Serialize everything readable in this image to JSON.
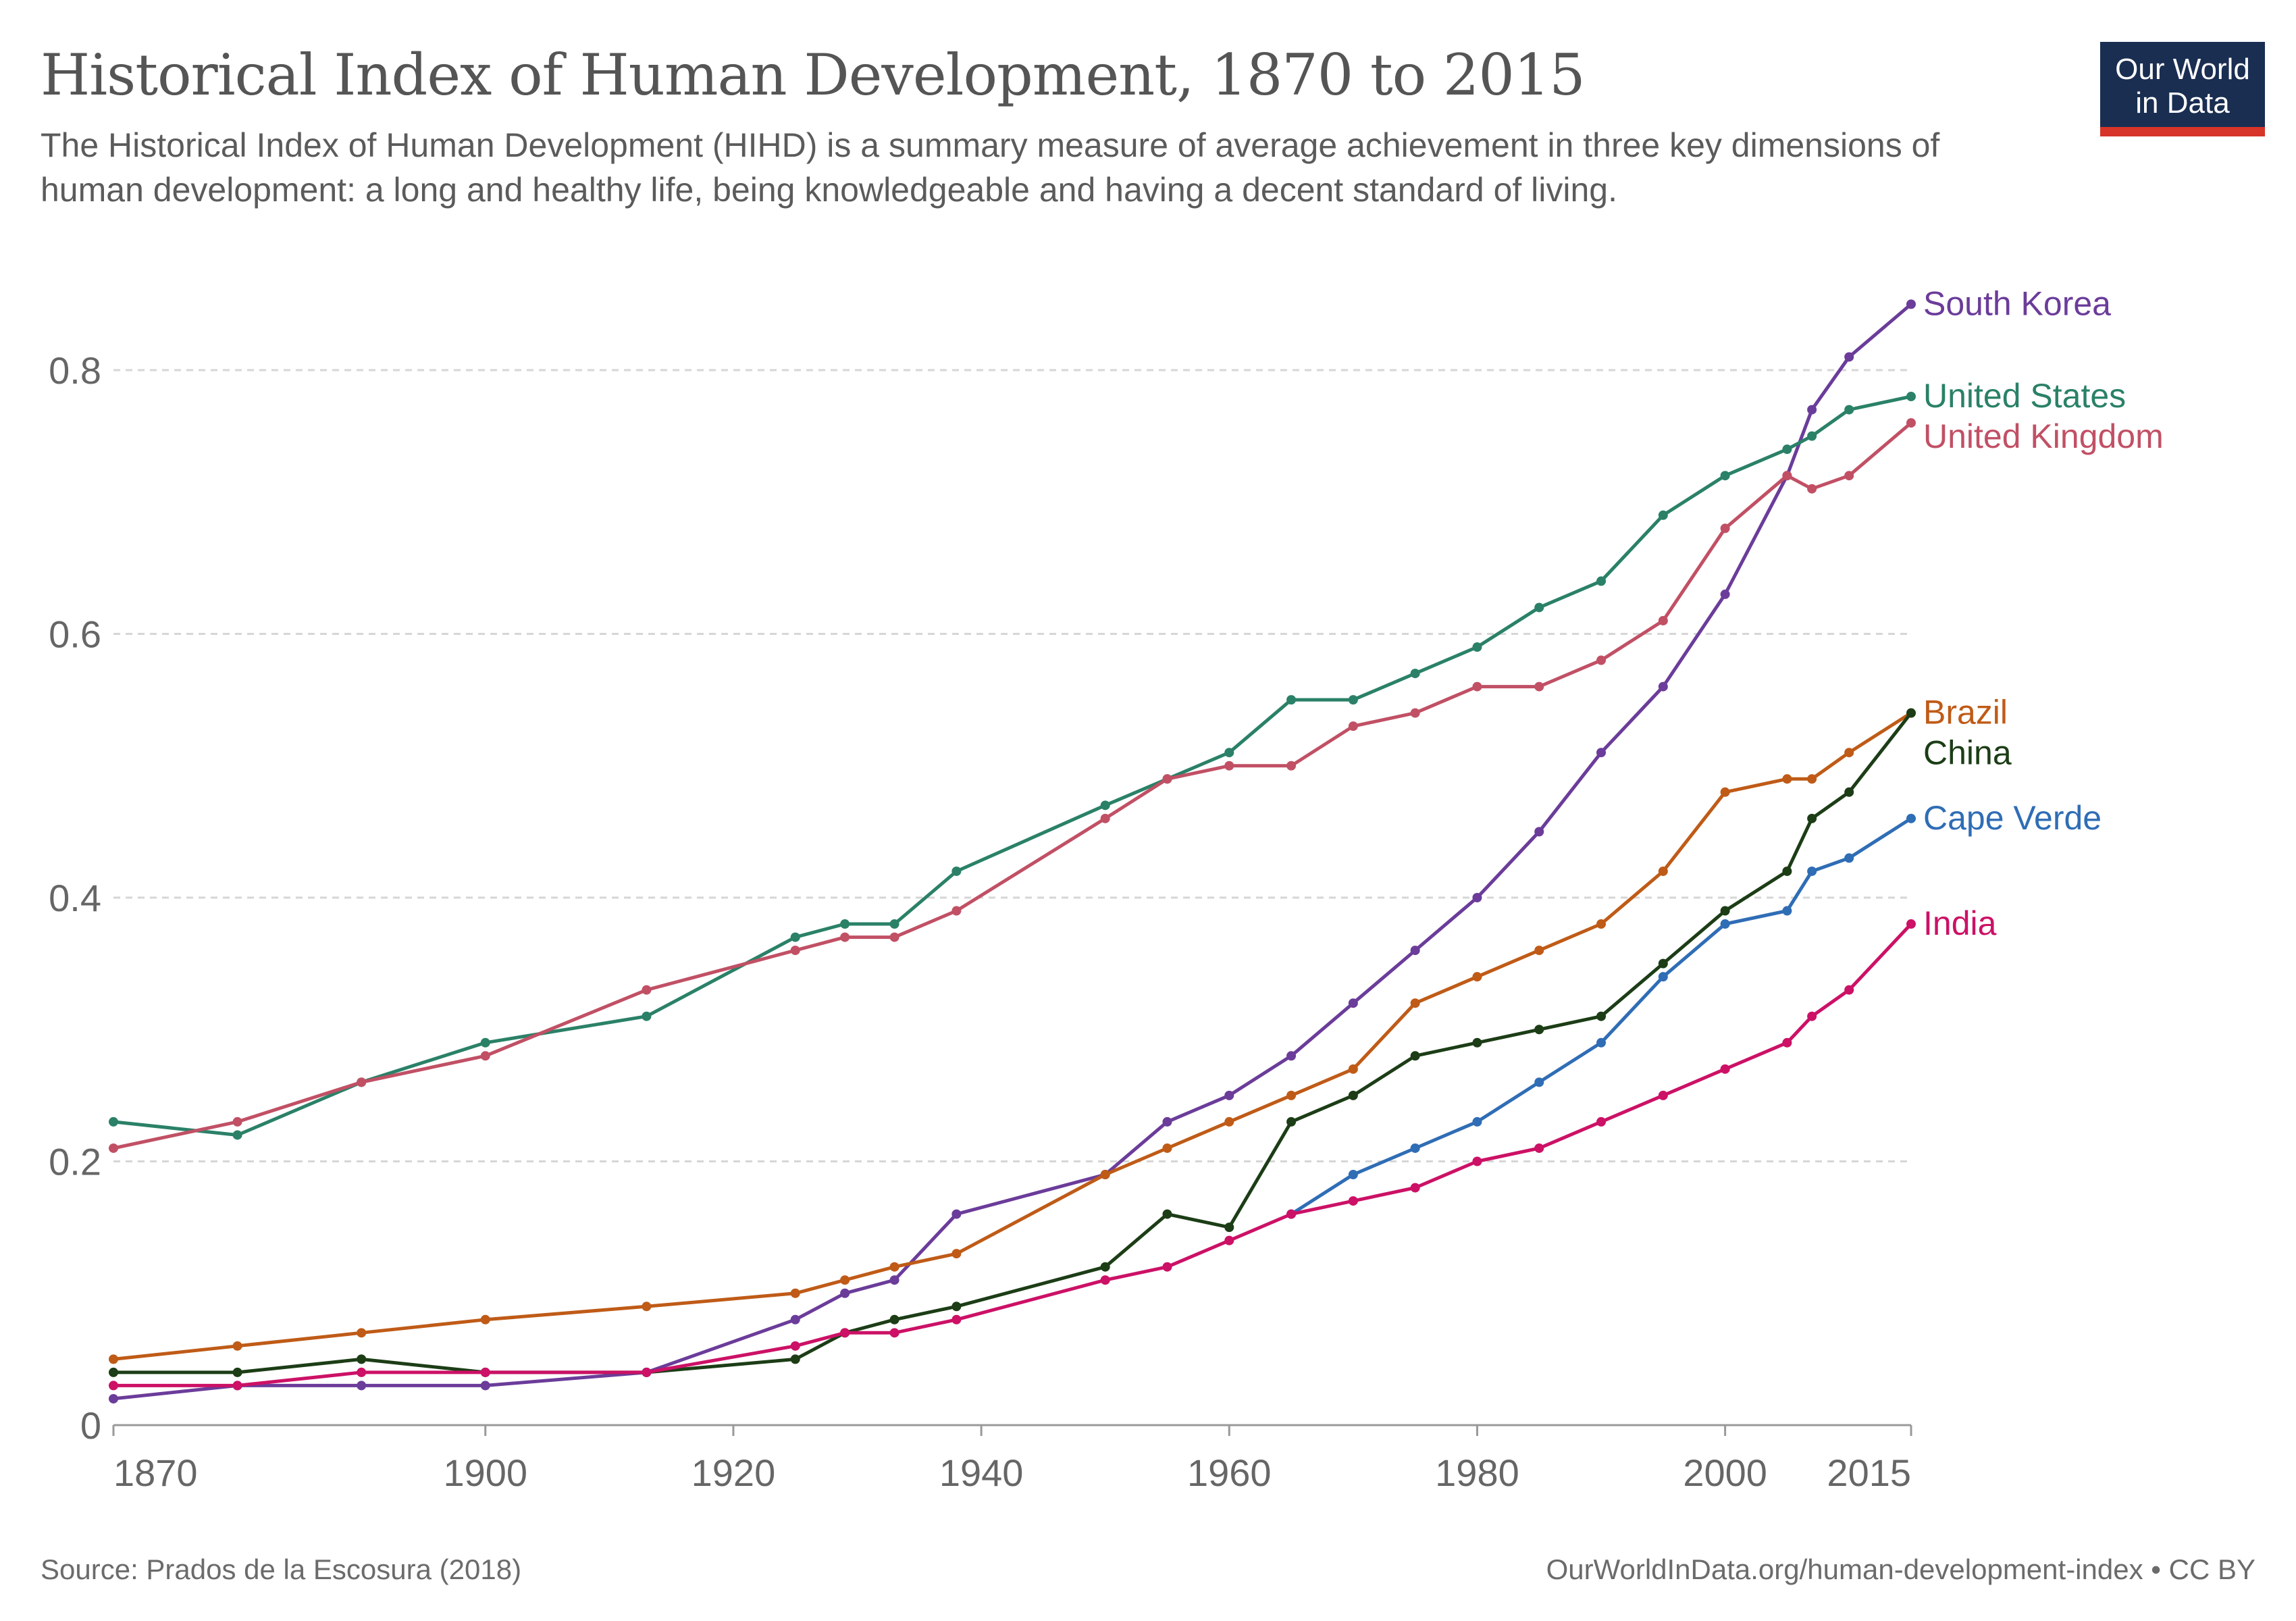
{
  "header": {
    "title": "Historical Index of Human Development, 1870 to 2015",
    "subtitle": "The Historical Index of Human Development (HIHD) is a summary measure of average achievement in three key dimensions of human development: a long and healthy life, being knowledgeable and having a decent standard of living."
  },
  "logo": {
    "line1": "Our World",
    "line2": "in Data",
    "bg_color": "#1a2e52",
    "accent_color": "#d73529"
  },
  "footer": {
    "source": "Source: Prados de la Escosura (2018)",
    "link": "OurWorldInData.org/human-development-index • CC BY"
  },
  "chart_data": {
    "type": "line",
    "title": "Historical Index of Human Development, 1870 to 2015",
    "xlabel": "",
    "ylabel": "",
    "xlim": [
      1870,
      2015
    ],
    "ylim": [
      0,
      0.85
    ],
    "x_ticks": [
      1870,
      1900,
      1920,
      1940,
      1960,
      1980,
      2000,
      2015
    ],
    "y_ticks": [
      0,
      0.2,
      0.4,
      0.6,
      0.8
    ],
    "y_tick_labels": [
      "0",
      "0.2",
      "0.4",
      "0.6",
      "0.8"
    ],
    "grid": "horizontal dashed",
    "legend": "line-end labels",
    "series": [
      {
        "name": "South Korea",
        "color": "#6b3c9a",
        "points": [
          [
            1870,
            0.02
          ],
          [
            1880,
            0.03
          ],
          [
            1890,
            0.03
          ],
          [
            1900,
            0.03
          ],
          [
            1913,
            0.04
          ],
          [
            1925,
            0.08
          ],
          [
            1929,
            0.1
          ],
          [
            1933,
            0.11
          ],
          [
            1938,
            0.16
          ],
          [
            1950,
            0.19
          ],
          [
            1955,
            0.23
          ],
          [
            1960,
            0.25
          ],
          [
            1965,
            0.28
          ],
          [
            1970,
            0.32
          ],
          [
            1975,
            0.36
          ],
          [
            1980,
            0.4
          ],
          [
            1985,
            0.45
          ],
          [
            1990,
            0.51
          ],
          [
            1995,
            0.56
          ],
          [
            2000,
            0.63
          ],
          [
            2005,
            0.72
          ],
          [
            2007,
            0.77
          ],
          [
            2010,
            0.81
          ],
          [
            2015,
            0.85
          ]
        ]
      },
      {
        "name": "United States",
        "color": "#2a8167",
        "points": [
          [
            1870,
            0.23
          ],
          [
            1880,
            0.22
          ],
          [
            1890,
            0.26
          ],
          [
            1900,
            0.29
          ],
          [
            1913,
            0.31
          ],
          [
            1925,
            0.37
          ],
          [
            1929,
            0.38
          ],
          [
            1933,
            0.38
          ],
          [
            1938,
            0.42
          ],
          [
            1950,
            0.47
          ],
          [
            1955,
            0.49
          ],
          [
            1960,
            0.51
          ],
          [
            1965,
            0.55
          ],
          [
            1970,
            0.55
          ],
          [
            1975,
            0.57
          ],
          [
            1980,
            0.59
          ],
          [
            1985,
            0.62
          ],
          [
            1990,
            0.64
          ],
          [
            1995,
            0.69
          ],
          [
            2000,
            0.72
          ],
          [
            2005,
            0.74
          ],
          [
            2007,
            0.75
          ],
          [
            2010,
            0.77
          ],
          [
            2015,
            0.78
          ]
        ]
      },
      {
        "name": "United Kingdom",
        "color": "#c15065",
        "points": [
          [
            1870,
            0.21
          ],
          [
            1880,
            0.23
          ],
          [
            1890,
            0.26
          ],
          [
            1900,
            0.28
          ],
          [
            1913,
            0.33
          ],
          [
            1925,
            0.36
          ],
          [
            1929,
            0.37
          ],
          [
            1933,
            0.37
          ],
          [
            1938,
            0.39
          ],
          [
            1950,
            0.46
          ],
          [
            1955,
            0.49
          ],
          [
            1960,
            0.5
          ],
          [
            1965,
            0.5
          ],
          [
            1970,
            0.53
          ],
          [
            1975,
            0.54
          ],
          [
            1980,
            0.56
          ],
          [
            1985,
            0.56
          ],
          [
            1990,
            0.58
          ],
          [
            1995,
            0.61
          ],
          [
            2000,
            0.68
          ],
          [
            2005,
            0.72
          ],
          [
            2007,
            0.71
          ],
          [
            2010,
            0.72
          ],
          [
            2015,
            0.76
          ]
        ]
      },
      {
        "name": "Brazil",
        "color": "#bf5b17",
        "points": [
          [
            1870,
            0.05
          ],
          [
            1880,
            0.06
          ],
          [
            1890,
            0.07
          ],
          [
            1900,
            0.08
          ],
          [
            1913,
            0.09
          ],
          [
            1925,
            0.1
          ],
          [
            1929,
            0.11
          ],
          [
            1933,
            0.12
          ],
          [
            1938,
            0.13
          ],
          [
            1950,
            0.19
          ],
          [
            1955,
            0.21
          ],
          [
            1960,
            0.23
          ],
          [
            1965,
            0.25
          ],
          [
            1970,
            0.27
          ],
          [
            1975,
            0.32
          ],
          [
            1980,
            0.34
          ],
          [
            1985,
            0.36
          ],
          [
            1990,
            0.38
          ],
          [
            1995,
            0.42
          ],
          [
            2000,
            0.48
          ],
          [
            2005,
            0.49
          ],
          [
            2007,
            0.49
          ],
          [
            2010,
            0.51
          ],
          [
            2015,
            0.54
          ]
        ]
      },
      {
        "name": "China",
        "color": "#1c3d16",
        "points": [
          [
            1870,
            0.04
          ],
          [
            1880,
            0.04
          ],
          [
            1890,
            0.05
          ],
          [
            1900,
            0.04
          ],
          [
            1913,
            0.04
          ],
          [
            1925,
            0.05
          ],
          [
            1929,
            0.07
          ],
          [
            1933,
            0.08
          ],
          [
            1938,
            0.09
          ],
          [
            1950,
            0.12
          ],
          [
            1955,
            0.16
          ],
          [
            1960,
            0.15
          ],
          [
            1965,
            0.23
          ],
          [
            1970,
            0.25
          ],
          [
            1975,
            0.28
          ],
          [
            1980,
            0.29
          ],
          [
            1985,
            0.3
          ],
          [
            1990,
            0.31
          ],
          [
            1995,
            0.35
          ],
          [
            2000,
            0.39
          ],
          [
            2005,
            0.42
          ],
          [
            2007,
            0.46
          ],
          [
            2010,
            0.48
          ],
          [
            2015,
            0.54
          ]
        ]
      },
      {
        "name": "Cape Verde",
        "color": "#2f6db5",
        "points": [
          [
            1965,
            0.16
          ],
          [
            1970,
            0.19
          ],
          [
            1975,
            0.21
          ],
          [
            1980,
            0.23
          ],
          [
            1985,
            0.26
          ],
          [
            1990,
            0.29
          ],
          [
            1995,
            0.34
          ],
          [
            2000,
            0.38
          ],
          [
            2005,
            0.39
          ],
          [
            2007,
            0.42
          ],
          [
            2010,
            0.43
          ],
          [
            2015,
            0.46
          ]
        ]
      },
      {
        "name": "India",
        "color": "#cc1166",
        "points": [
          [
            1870,
            0.03
          ],
          [
            1880,
            0.03
          ],
          [
            1890,
            0.04
          ],
          [
            1900,
            0.04
          ],
          [
            1913,
            0.04
          ],
          [
            1925,
            0.06
          ],
          [
            1929,
            0.07
          ],
          [
            1933,
            0.07
          ],
          [
            1938,
            0.08
          ],
          [
            1950,
            0.11
          ],
          [
            1955,
            0.12
          ],
          [
            1960,
            0.14
          ],
          [
            1965,
            0.16
          ],
          [
            1970,
            0.17
          ],
          [
            1975,
            0.18
          ],
          [
            1980,
            0.2
          ],
          [
            1985,
            0.21
          ],
          [
            1990,
            0.23
          ],
          [
            1995,
            0.25
          ],
          [
            2000,
            0.27
          ],
          [
            2005,
            0.29
          ],
          [
            2007,
            0.31
          ],
          [
            2010,
            0.33
          ],
          [
            2015,
            0.38
          ]
        ]
      }
    ]
  }
}
